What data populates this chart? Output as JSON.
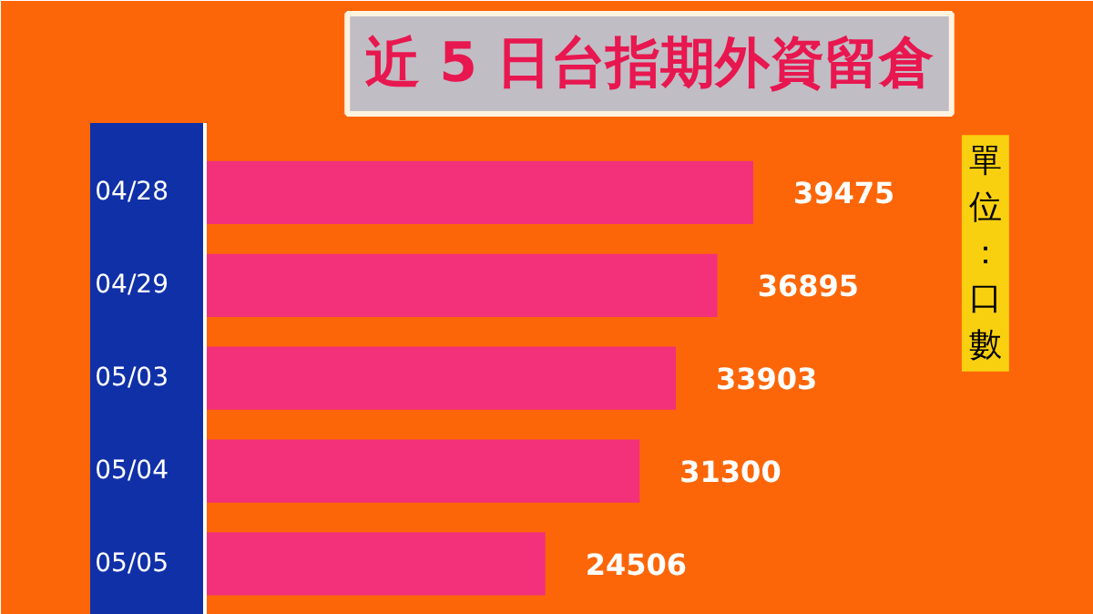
{
  "chart_data": {
    "type": "bar",
    "orientation": "horizontal",
    "title": "近 5 日台指期外資留倉",
    "categories": [
      "04/28",
      "04/29",
      "05/03",
      "05/04",
      "05/05"
    ],
    "values": [
      39475,
      36895,
      33903,
      31300,
      24506
    ],
    "color": "#f2317a",
    "data_labels": true,
    "xlim": [
      0,
      64000
    ],
    "tick_labels": "y",
    "grid": false,
    "annotations": [
      "單位：口數"
    ]
  }
}
